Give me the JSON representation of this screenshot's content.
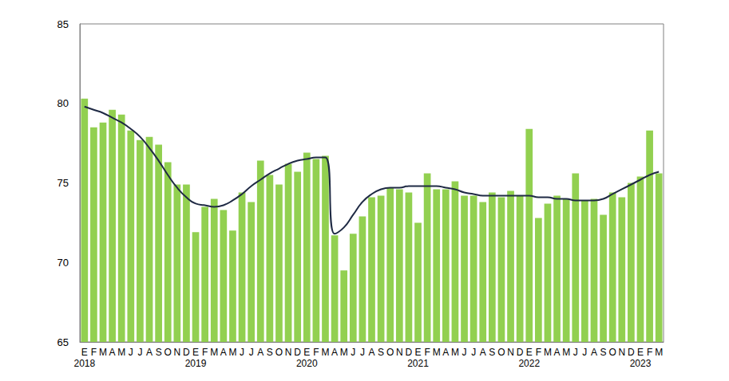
{
  "chart_data": {
    "type": "bar",
    "categories": [
      "E\n2018",
      "F",
      "M",
      "A",
      "M",
      "J",
      "J",
      "A",
      "S",
      "O",
      "N",
      "D",
      "E\n2019",
      "F",
      "M",
      "A",
      "M",
      "J",
      "J",
      "A",
      "S",
      "O",
      "N",
      "D",
      "E\n2020",
      "F",
      "M",
      "A",
      "M",
      "J",
      "J",
      "A",
      "S",
      "O",
      "N",
      "D",
      "E\n2021",
      "F",
      "M",
      "A",
      "M",
      "J",
      "J",
      "A",
      "S",
      "O",
      "N",
      "D",
      "E\n2022",
      "F",
      "M",
      "A",
      "M",
      "J",
      "J",
      "A",
      "S",
      "O",
      "N",
      "D",
      "E\n2023",
      "F",
      "M"
    ],
    "series": [
      {
        "type": "bar",
        "color": "#92d050",
        "values": [
          80.3,
          78.5,
          78.8,
          79.6,
          79.3,
          78.3,
          77.7,
          77.9,
          77.4,
          76.3,
          74.9,
          74.9,
          71.9,
          73.5,
          74.0,
          73.3,
          72.0,
          74.4,
          73.8,
          76.4,
          75.5,
          74.9,
          76.2,
          75.7,
          76.9,
          76.5,
          76.7,
          71.7,
          69.5,
          71.8,
          72.9,
          74.1,
          74.2,
          74.7,
          74.6,
          74.4,
          72.5,
          75.6,
          74.6,
          74.6,
          75.1,
          74.2,
          74.2,
          73.8,
          74.4,
          74.1,
          74.5,
          74.2,
          78.4,
          72.8,
          73.7,
          74.2,
          74.0,
          75.6,
          73.9,
          74.0,
          73.0,
          74.4,
          74.1,
          75.0,
          75.4,
          78.3,
          75.6
        ]
      },
      {
        "type": "line",
        "color": "#1f2a44",
        "marker": "none",
        "line_style": "solid",
        "values": [
          79.8,
          79.6,
          79.4,
          79.1,
          78.8,
          78.4,
          77.9,
          77.2,
          76.4,
          75.5,
          74.7,
          74.1,
          73.7,
          73.6,
          73.5,
          73.6,
          73.9,
          74.3,
          74.8,
          75.2,
          75.6,
          75.9,
          76.2,
          76.4,
          76.5,
          76.6,
          76.6,
          71.8,
          72.2,
          73.0,
          73.8,
          74.3,
          74.6,
          74.7,
          74.7,
          74.8,
          74.8,
          74.8,
          74.8,
          74.7,
          74.6,
          74.4,
          74.3,
          74.2,
          74.2,
          74.2,
          74.2,
          74.2,
          74.2,
          74.1,
          74.1,
          74.0,
          74.0,
          73.9,
          73.9,
          73.9,
          74.0,
          74.3,
          74.6,
          74.9,
          75.2,
          75.5,
          75.7
        ]
      }
    ],
    "ylim": [
      65,
      85
    ],
    "yticks": [
      65,
      70,
      75,
      80,
      85
    ],
    "grid": false
  }
}
